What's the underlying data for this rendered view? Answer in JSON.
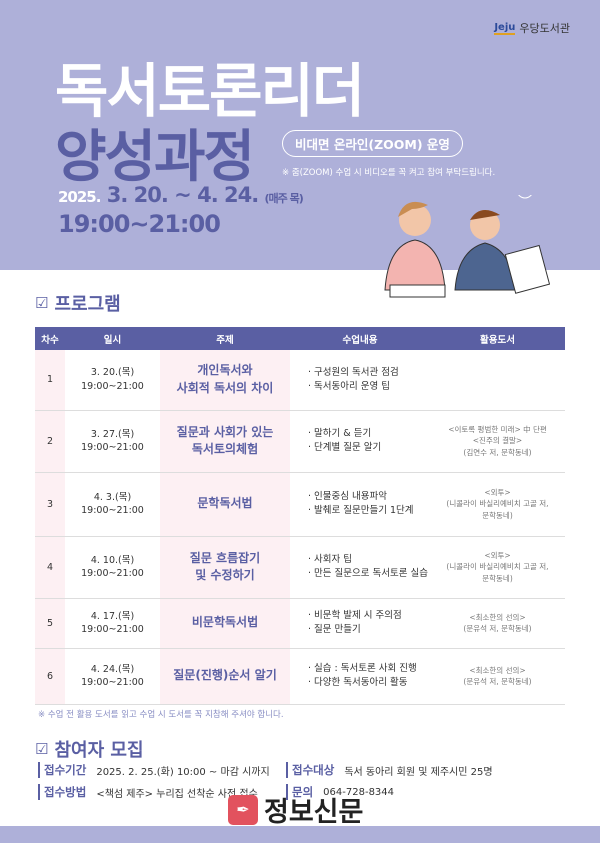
{
  "header": {
    "logo_mark": "Jeju",
    "logo_text": "우당도서관",
    "title_line1": "독서토론리더",
    "title_line2": "양성과정",
    "badge": "비대면 온라인(ZOOM) 운영",
    "note": "※ 줌(ZOOM) 수업 시 비디오를 꼭 켜고 참여 부탁드립니다.",
    "date_year": "2025.",
    "date_range": "3. 20. ~ 4. 24.",
    "date_weekly": "(매주 목)",
    "time": "19:00~21:00"
  },
  "program": {
    "title": "프로그램",
    "columns": [
      "차수",
      "일시",
      "주제",
      "수업내용",
      "활용도서"
    ],
    "rows": [
      {
        "no": "1",
        "date": "3. 20.(목)",
        "time": "19:00~21:00",
        "topic": [
          "개인독서와",
          "사회적 독서의 차이"
        ],
        "content": [
          "· 구성원의 독서관 점검",
          "· 독서동아리 운영 팁"
        ],
        "book": [
          "",
          "",
          ""
        ]
      },
      {
        "no": "2",
        "date": "3. 27.(목)",
        "time": "19:00~21:00",
        "topic": [
          "질문과 사회가 있는",
          "독서토의체험"
        ],
        "content": [
          "· 말하기 & 듣기",
          "· 단계별 질문 알기"
        ],
        "book": [
          "<이토록 평범한 미래> 中 단편",
          "<진주의 결말>",
          "(김연수 저, 문학동네)"
        ]
      },
      {
        "no": "3",
        "date": "4. 3.(목)",
        "time": "19:00~21:00",
        "topic": [
          "문학독서법",
          ""
        ],
        "content": [
          "· 인물중심 내용파악",
          "· 발췌로 질문만들기 1단계"
        ],
        "book": [
          "<외투>",
          "(니콜라이 바실리예비치 고골 저,",
          "문학동네)"
        ]
      },
      {
        "no": "4",
        "date": "4. 10.(목)",
        "time": "19:00~21:00",
        "topic": [
          "질문 흐름잡기",
          "및 수정하기"
        ],
        "content": [
          "· 사회자 팁",
          "· 만든 질문으로 독서토론 실습"
        ],
        "book": [
          "<외투>",
          "(니콜라이 바실리예비치 고골 저,",
          "문학동네)"
        ]
      },
      {
        "no": "5",
        "date": "4. 17.(목)",
        "time": "19:00~21:00",
        "topic": [
          "비문학독서법",
          ""
        ],
        "content": [
          "· 비문학 발제 시 주의점",
          "· 질문 만들기"
        ],
        "book": [
          "<최소한의 선의>",
          "(문유석 저, 문학동네)",
          ""
        ]
      },
      {
        "no": "6",
        "date": "4. 24.(목)",
        "time": "19:00~21:00",
        "topic": [
          "질문(진행)순서 알기",
          ""
        ],
        "content": [
          "· 실습 : 독서토론 사회 진행",
          "· 다양한 독서동아리 활동"
        ],
        "book": [
          "<최소한의 선의>",
          "(문유석 저, 문학동네)",
          ""
        ]
      }
    ],
    "note": "※ 수업 전 활용 도서를 읽고 수업 시 도서를 꼭 지참해 주셔야 합니다."
  },
  "recruit": {
    "title": "참여자 모집",
    "period_label": "접수기간",
    "period": "2025. 2. 25.(화) 10:00 ~ 마감 시까지",
    "target_label": "접수대상",
    "target": "독서 동아리 회원 및 제주시민 25명",
    "method_label": "접수방법",
    "method": "<책섬 제주> 누리집 선착순 사전 접수",
    "contact_label": "문의",
    "contact": "064-728-8344"
  },
  "watermark": "정보신문",
  "colors": {
    "lavender": "#aeb0d9",
    "accent": "#5a5fa3",
    "pink": "#fdf0f3"
  }
}
